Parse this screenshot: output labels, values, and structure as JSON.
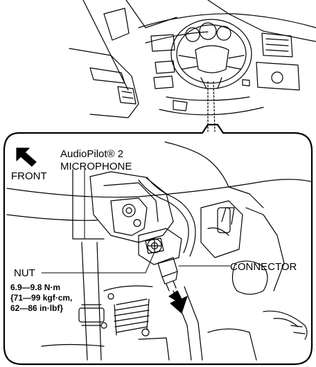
{
  "labels": {
    "front": "FRONT",
    "audiopilot_line1": "AudioPilot® 2",
    "audiopilot_line2": "MICROPHONE",
    "nut": "NUT",
    "connector": "CONNECTOR"
  },
  "torque_spec": {
    "line1": "6.9—9.8 N·m",
    "line2": "{71—99 kgf·cm,",
    "line3": "62—86 in·lbf}"
  }
}
